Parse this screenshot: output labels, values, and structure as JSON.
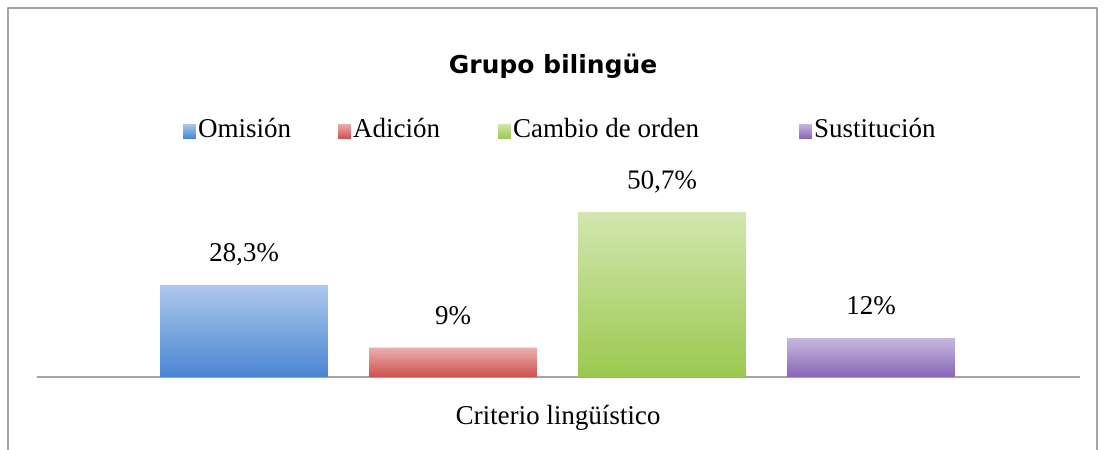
{
  "chart_data": {
    "type": "bar",
    "title": "Grupo bilingüe",
    "categories": [
      "Criterio lingüístico"
    ],
    "series": [
      {
        "name": "Omisión",
        "color": "#4a86d4",
        "values": [
          28.3
        ],
        "value_labels": [
          "28,3%"
        ]
      },
      {
        "name": "Adición",
        "color": "#d0514f",
        "values": [
          9
        ],
        "value_labels": [
          "9%"
        ]
      },
      {
        "name": "Cambio de orden",
        "color": "#9bc94f",
        "values": [
          50.7
        ],
        "value_labels": [
          "50,7%"
        ]
      },
      {
        "name": "Sustitución",
        "color": "#8766b8",
        "values": [
          12
        ],
        "value_labels": [
          "12%"
        ]
      }
    ],
    "ylim": [
      0,
      60
    ],
    "legend": "top"
  }
}
